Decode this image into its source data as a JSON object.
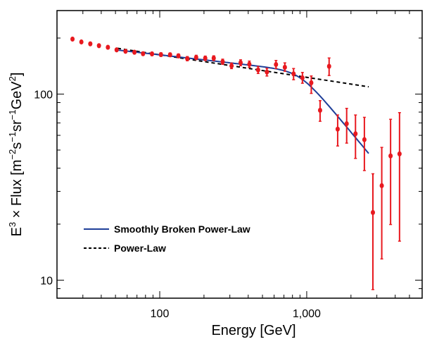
{
  "chart_data": {
    "type": "scatter",
    "title": "",
    "xlabel": "Energy [GeV]",
    "ylabel_parts": {
      "E": "E",
      "e3": "3",
      "times_flux": " × Flux [m",
      "em2": "−2",
      "s": "s",
      "em1a": "−1",
      "sr": "sr",
      "em1b": "−1",
      "gev": "GeV",
      "e2": "2",
      "close": "]"
    },
    "x_scale": "log",
    "y_scale": "log",
    "xlim": [
      20,
      6100
    ],
    "ylim": [
      8.0,
      281
    ],
    "x_major_ticks": [
      {
        "value": 100,
        "label": "100"
      },
      {
        "value": 1000,
        "label": "1,000"
      }
    ],
    "y_major_ticks": [
      {
        "value": 10,
        "label": "10"
      },
      {
        "value": 100,
        "label": "100"
      }
    ],
    "x_minor_ticks": [
      30,
      40,
      50,
      60,
      70,
      80,
      90,
      200,
      300,
      400,
      500,
      600,
      700,
      800,
      900,
      2000,
      3000,
      4000,
      5000
    ],
    "y_minor_ticks": [
      9,
      20,
      30,
      40,
      50,
      60,
      70,
      80,
      90,
      200
    ],
    "grid": false,
    "legend_position": "lower-left",
    "series": [
      {
        "name": "Data",
        "kind": "points-with-errorbars",
        "color": "#e8191f",
        "points": [
          {
            "x": 25.5,
            "y": 197.5,
            "lo": 194.5,
            "hi": 200.5
          },
          {
            "x": 29.3,
            "y": 190.6,
            "lo": 187.6,
            "hi": 193.6
          },
          {
            "x": 33.7,
            "y": 186.2,
            "lo": 183.2,
            "hi": 189.2
          },
          {
            "x": 38.6,
            "y": 182.0,
            "lo": 179.0,
            "hi": 185.0
          },
          {
            "x": 44.4,
            "y": 178.4,
            "lo": 175.4,
            "hi": 181.4
          },
          {
            "x": 50.9,
            "y": 172.8,
            "lo": 169.8,
            "hi": 175.8
          },
          {
            "x": 58.5,
            "y": 169.8,
            "lo": 166.8,
            "hi": 172.8
          },
          {
            "x": 67.3,
            "y": 167.8,
            "lo": 164.5,
            "hi": 171.0
          },
          {
            "x": 77.0,
            "y": 164.8,
            "lo": 161.5,
            "hi": 168.0
          },
          {
            "x": 88.6,
            "y": 164.4,
            "lo": 161.0,
            "hi": 167.8
          },
          {
            "x": 101.9,
            "y": 163.0,
            "lo": 159.5,
            "hi": 166.5
          },
          {
            "x": 117.6,
            "y": 162.6,
            "lo": 159.0,
            "hi": 166.2
          },
          {
            "x": 134,
            "y": 160.5,
            "lo": 156.8,
            "hi": 164.2
          },
          {
            "x": 154,
            "y": 155.0,
            "lo": 151.0,
            "hi": 159.0
          },
          {
            "x": 177,
            "y": 157.4,
            "lo": 153.2,
            "hi": 161.6
          },
          {
            "x": 204,
            "y": 155.7,
            "lo": 151.4,
            "hi": 160.0
          },
          {
            "x": 233,
            "y": 156.0,
            "lo": 151.5,
            "hi": 160.5
          },
          {
            "x": 268,
            "y": 149.3,
            "lo": 144.5,
            "hi": 154.0
          },
          {
            "x": 308,
            "y": 141.8,
            "lo": 137.0,
            "hi": 146.7
          },
          {
            "x": 355,
            "y": 147.4,
            "lo": 142.0,
            "hi": 152.8
          },
          {
            "x": 407,
            "y": 144.7,
            "lo": 139.0,
            "hi": 150.4
          },
          {
            "x": 467,
            "y": 134.8,
            "lo": 129.0,
            "hi": 140.6
          },
          {
            "x": 536,
            "y": 131.3,
            "lo": 125.0,
            "hi": 137.6
          },
          {
            "x": 618,
            "y": 144.2,
            "lo": 137.2,
            "hi": 151.6
          },
          {
            "x": 710,
            "y": 139.3,
            "lo": 132.6,
            "hi": 147.1
          },
          {
            "x": 814,
            "y": 128.4,
            "lo": 119.4,
            "hi": 137.2
          },
          {
            "x": 935,
            "y": 122.2,
            "lo": 114.3,
            "hi": 130.7
          },
          {
            "x": 1074,
            "y": 115.0,
            "lo": 100.8,
            "hi": 125.1
          },
          {
            "x": 1233,
            "y": 81.8,
            "lo": 71.4,
            "hi": 92.2
          },
          {
            "x": 1420,
            "y": 141.0,
            "lo": 125.8,
            "hi": 156.3
          },
          {
            "x": 1624,
            "y": 64.8,
            "lo": 52.6,
            "hi": 77.2
          },
          {
            "x": 1870,
            "y": 69.3,
            "lo": 54.5,
            "hi": 83.8
          },
          {
            "x": 2147,
            "y": 61.2,
            "lo": 45.1,
            "hi": 77.2
          },
          {
            "x": 2468,
            "y": 56.9,
            "lo": 38.8,
            "hi": 75.0
          },
          {
            "x": 2820,
            "y": 23.1,
            "lo": 8.9,
            "hi": 37.3
          },
          {
            "x": 3240,
            "y": 32.2,
            "lo": 13.0,
            "hi": 51.7
          },
          {
            "x": 3720,
            "y": 46.5,
            "lo": 19.9,
            "hi": 73.2
          },
          {
            "x": 4280,
            "y": 47.7,
            "lo": 16.2,
            "hi": 79.5
          }
        ]
      },
      {
        "name": "Smoothly Broken Power-Law",
        "kind": "line",
        "style": "solid",
        "color": "#1f3f99",
        "x_range": [
          51,
          2640
        ],
        "model": {
          "norm_at_100": 162.5,
          "gamma1_minus3": -0.09,
          "break_energy": 900,
          "gamma2_minus3": -0.95,
          "smoothness": 8
        }
      },
      {
        "name": "Power-Law",
        "kind": "line",
        "style": "dashed",
        "color": "#000000",
        "points": [
          {
            "x": 51.6,
            "y": 176.2
          },
          {
            "x": 2640,
            "y": 109.4
          }
        ]
      }
    ],
    "legend": [
      {
        "label": "Smoothly Broken Power-Law",
        "style": "solid",
        "color": "#1f3f99"
      },
      {
        "label": "Power-Law",
        "style": "dashed",
        "color": "#000000"
      }
    ]
  }
}
